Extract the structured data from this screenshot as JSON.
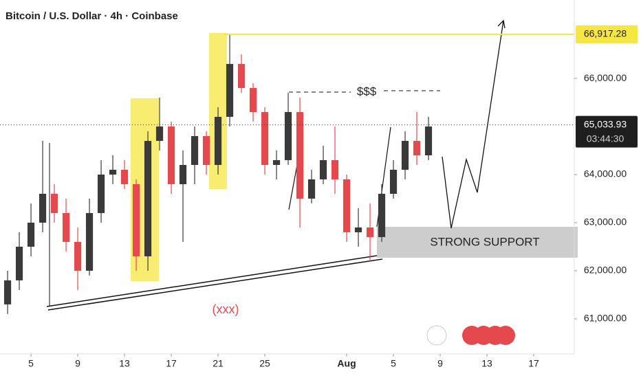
{
  "chart_data": {
    "type": "candlestick",
    "title": "Bitcoin / U.S. Dollar · 4h · Coinbase",
    "x": [
      2,
      3,
      4,
      5,
      6,
      7,
      8,
      9,
      10,
      11,
      12,
      13,
      14,
      15,
      16,
      17,
      18,
      19,
      20,
      21,
      22,
      23,
      24,
      25,
      26,
      27,
      28,
      29,
      30,
      31,
      32,
      33,
      34,
      35,
      36,
      37,
      38
    ],
    "open": [
      61300,
      61800,
      62500,
      63000,
      63600,
      63200,
      62600,
      62000,
      63200,
      64000,
      64100,
      63800,
      62300,
      64700,
      65000,
      63800,
      64200,
      64800,
      64200,
      65200,
      66300,
      65800,
      65300,
      64200,
      64300,
      65300,
      63500,
      63900,
      64300,
      63900,
      62800,
      62900,
      62700,
      63600,
      64100,
      64700,
      64400
    ],
    "high": [
      62000,
      62800,
      63400,
      64700,
      63800,
      63500,
      62900,
      63500,
      64300,
      64400,
      64300,
      63900,
      64900,
      65600,
      65100,
      64500,
      65000,
      64900,
      65400,
      66917,
      66500,
      65900,
      65400,
      64500,
      65700,
      65600,
      64100,
      64600,
      65000,
      64000,
      63300,
      63400,
      63800,
      64300,
      64900,
      65300,
      65200
    ],
    "low": [
      61100,
      61600,
      62300,
      62800,
      63000,
      62400,
      61600,
      61900,
      63000,
      63800,
      63700,
      62000,
      62000,
      64500,
      63600,
      62600,
      63800,
      64000,
      64000,
      65000,
      65700,
      65100,
      64000,
      63900,
      64200,
      62900,
      63400,
      63800,
      63600,
      62600,
      62500,
      62200,
      62600,
      63500,
      63900,
      64200,
      64300
    ],
    "close": [
      61800,
      62500,
      63000,
      63600,
      63200,
      62600,
      62000,
      63200,
      64000,
      64100,
      63800,
      62300,
      64700,
      65000,
      63800,
      64200,
      64800,
      64200,
      65200,
      66300,
      65800,
      65300,
      64200,
      64300,
      65300,
      63500,
      63900,
      64300,
      63900,
      62800,
      62900,
      62700,
      63600,
      64100,
      64700,
      64400,
      65000
    ],
    "up_color": "#3a3a3a",
    "down_color": "#e5484d",
    "xlim": [
      1.35,
      50.47
    ],
    "xticks": [
      {
        "value": 4,
        "label": "5"
      },
      {
        "value": 8,
        "label": "9"
      },
      {
        "value": 12,
        "label": "13"
      },
      {
        "value": 16,
        "label": "17"
      },
      {
        "value": 20,
        "label": "21"
      },
      {
        "value": 24,
        "label": "25"
      },
      {
        "value": 31,
        "label": "Aug"
      },
      {
        "value": 35,
        "label": "5"
      },
      {
        "value": 39,
        "label": "9"
      },
      {
        "value": 43,
        "label": "13"
      },
      {
        "value": 47,
        "label": "17"
      }
    ],
    "ylim": [
      60270,
      67630
    ],
    "yticks": [
      {
        "value": 61000,
        "label": "61,000.00"
      },
      {
        "value": 62000,
        "label": "62,000.00"
      },
      {
        "value": 63000,
        "label": "63,000.00"
      },
      {
        "value": 64000,
        "label": "64,000.00"
      },
      {
        "value": 66000,
        "label": "66,000.00"
      }
    ],
    "level": {
      "value": 66917.28,
      "label": "66,917.28",
      "color": "#f5e642"
    },
    "last_price": {
      "value": 65033.93,
      "label": "65,033.93"
    },
    "countdown": "03:44:30",
    "annotations": [
      "$$$",
      "(xxx)",
      "STRONG SUPPORT"
    ]
  }
}
